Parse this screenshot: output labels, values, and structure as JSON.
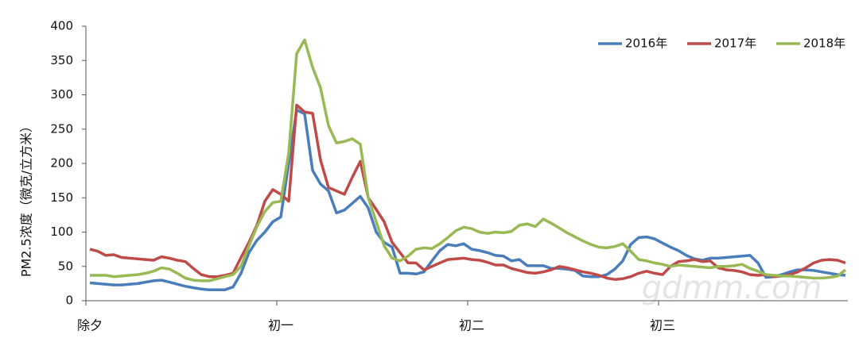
{
  "chart_data": {
    "type": "line",
    "y_label": "PM2.5浓度（微克/立方米）",
    "watermark": "gdmm.com",
    "categories": [
      "除夕",
      null,
      null,
      null,
      null,
      null,
      null,
      null,
      null,
      null,
      null,
      null,
      null,
      null,
      null,
      null,
      null,
      null,
      null,
      null,
      null,
      null,
      null,
      null,
      "初一",
      null,
      null,
      null,
      null,
      null,
      null,
      null,
      null,
      null,
      null,
      null,
      null,
      null,
      null,
      null,
      null,
      null,
      null,
      null,
      null,
      null,
      null,
      null,
      "初二",
      null,
      null,
      null,
      null,
      null,
      null,
      null,
      null,
      null,
      null,
      null,
      null,
      null,
      null,
      null,
      null,
      null,
      null,
      null,
      null,
      null,
      null,
      null,
      "初三",
      null,
      null,
      null,
      null,
      null,
      null,
      null,
      null,
      null,
      null,
      null,
      null,
      null,
      null,
      null,
      null,
      null,
      null,
      null,
      null,
      null,
      null,
      null
    ],
    "ylim": [
      0,
      400
    ],
    "yticks": [
      0,
      50,
      100,
      150,
      200,
      250,
      300,
      350,
      400
    ],
    "legend": "top-right",
    "series": [
      {
        "name": "2016年",
        "color": "#4a7ebb",
        "values": [
          26,
          25,
          24,
          23,
          23,
          24,
          25,
          27,
          29,
          30,
          27,
          24,
          21,
          19,
          17,
          16,
          16,
          16,
          20,
          40,
          70,
          88,
          100,
          115,
          122,
          200,
          278,
          272,
          190,
          170,
          160,
          128,
          132,
          142,
          152,
          135,
          100,
          85,
          78,
          40,
          40,
          39,
          42,
          58,
          73,
          82,
          80,
          83,
          75,
          73,
          70,
          66,
          65,
          58,
          60,
          51,
          51,
          51,
          47,
          47,
          46,
          44,
          36,
          35,
          35,
          38,
          46,
          58,
          82,
          92,
          93,
          90,
          84,
          78,
          73,
          66,
          61,
          59,
          62,
          62,
          63,
          64,
          65,
          66,
          55,
          34,
          35,
          38,
          42,
          45,
          45,
          44,
          42,
          40,
          38,
          37
        ]
      },
      {
        "name": "2017年",
        "color": "#be4b48",
        "values": [
          75,
          72,
          66,
          67,
          63,
          62,
          61,
          60,
          59,
          64,
          62,
          59,
          57,
          47,
          38,
          35,
          35,
          37,
          40,
          63,
          85,
          110,
          145,
          162,
          155,
          145,
          285,
          275,
          273,
          205,
          165,
          160,
          155,
          180,
          203,
          150,
          133,
          115,
          85,
          70,
          55,
          55,
          45,
          50,
          55,
          60,
          61,
          62,
          60,
          59,
          56,
          52,
          52,
          47,
          44,
          41,
          40,
          42,
          45,
          50,
          48,
          45,
          42,
          40,
          37,
          33,
          31,
          32,
          35,
          40,
          43,
          40,
          38,
          50,
          57,
          58,
          60,
          57,
          58,
          48,
          45,
          44,
          42,
          38,
          37,
          38,
          35,
          36,
          38,
          42,
          48,
          55,
          59,
          60,
          59,
          55
        ]
      },
      {
        "name": "2018年",
        "color": "#98b954",
        "values": [
          37,
          37,
          37,
          35,
          36,
          37,
          38,
          40,
          43,
          48,
          46,
          40,
          33,
          30,
          29,
          29,
          32,
          35,
          38,
          50,
          80,
          108,
          130,
          143,
          145,
          215,
          360,
          380,
          340,
          310,
          255,
          230,
          232,
          236,
          228,
          150,
          115,
          80,
          62,
          58,
          65,
          75,
          77,
          76,
          83,
          92,
          102,
          107,
          105,
          100,
          98,
          100,
          99,
          101,
          110,
          112,
          108,
          119,
          113,
          106,
          99,
          93,
          87,
          82,
          78,
          77,
          79,
          83,
          72,
          60,
          58,
          55,
          53,
          50,
          52,
          51,
          50,
          49,
          48,
          50,
          50,
          51,
          53,
          47,
          43,
          38,
          37,
          36,
          36,
          35,
          34,
          33,
          33,
          34,
          36,
          45
        ]
      }
    ]
  }
}
